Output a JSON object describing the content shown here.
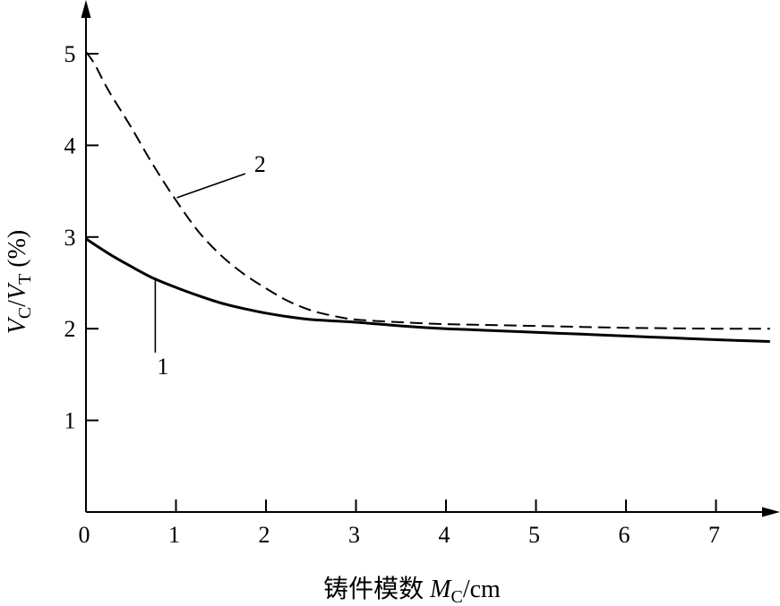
{
  "chart_data": {
    "type": "line",
    "xlabel": {
      "prefix": "铸件模数 ",
      "var": "M",
      "sub": "C",
      "suffix": "/cm"
    },
    "ylabel": {
      "var1": "V",
      "sub1": "C",
      "slash": "/",
      "var2": "V",
      "sub2": "T",
      "suffix": " (%)"
    },
    "xlim": [
      0,
      7.7
    ],
    "ylim": [
      0,
      5.5
    ],
    "x_ticks": [
      "0",
      "1",
      "2",
      "3",
      "4",
      "5",
      "6",
      "7"
    ],
    "y_ticks": [
      "1",
      "2",
      "3",
      "4",
      "5"
    ],
    "grid": false,
    "legend": "none",
    "series": [
      {
        "label": "1",
        "style": "solid",
        "label_x": 0.85,
        "label_y": 1.7,
        "x": [
          0,
          0.25,
          0.5,
          0.75,
          1.0,
          1.25,
          1.5,
          1.75,
          2.0,
          2.25,
          2.5,
          3.0,
          3.5,
          4.0,
          4.5,
          5.0,
          5.5,
          6.0,
          6.5,
          7.0,
          7.6
        ],
        "y": [
          2.98,
          2.82,
          2.68,
          2.55,
          2.45,
          2.36,
          2.28,
          2.22,
          2.17,
          2.13,
          2.1,
          2.07,
          2.03,
          2.0,
          1.98,
          1.96,
          1.94,
          1.92,
          1.9,
          1.88,
          1.86
        ]
      },
      {
        "label": "2",
        "style": "dashed",
        "label_x": 1.85,
        "label_y": 3.75,
        "x": [
          0,
          0.1,
          0.25,
          0.5,
          0.75,
          1.0,
          1.25,
          1.5,
          1.75,
          2.0,
          2.25,
          2.5,
          2.75,
          3.0,
          3.5,
          4.0,
          4.5,
          5.0,
          5.5,
          6.0,
          7.0,
          7.6
        ],
        "y": [
          5.02,
          4.88,
          4.6,
          4.2,
          3.78,
          3.4,
          3.06,
          2.8,
          2.6,
          2.44,
          2.3,
          2.2,
          2.14,
          2.1,
          2.07,
          2.05,
          2.04,
          2.03,
          2.02,
          2.01,
          2.0,
          2.0
        ]
      }
    ]
  }
}
